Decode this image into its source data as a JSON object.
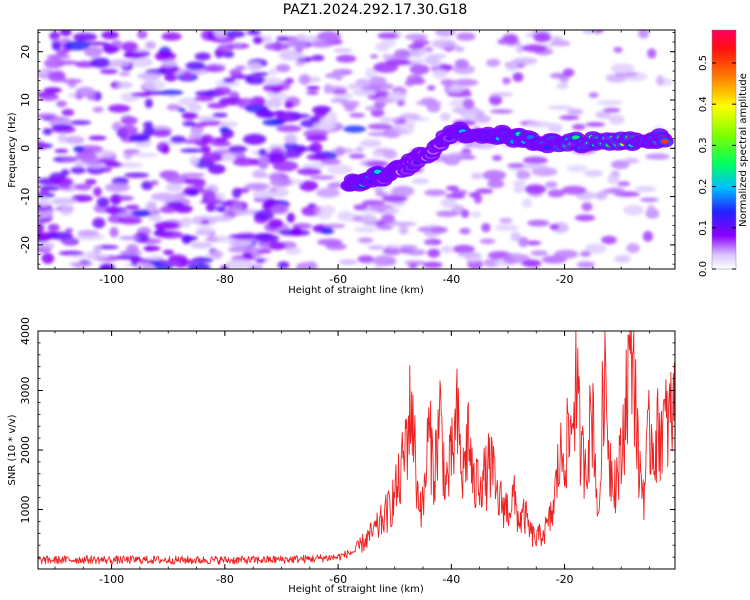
{
  "title": "PAZ1.2024.292.17.30.G18",
  "chart_data": [
    {
      "type": "heatmap",
      "xlabel": "Height of straight line (km)",
      "ylabel": "Frequency (Hz)",
      "xlim": [
        -113,
        -0.5
      ],
      "ylim": [
        -25,
        24.5
      ],
      "x_ticks": [
        -100,
        -80,
        -60,
        -40,
        -20
      ],
      "y_ticks": [
        -20,
        -10,
        0,
        10,
        20
      ],
      "colorbar": {
        "label": "Normalized spectral amplitude",
        "range": [
          0.0,
          0.58
        ],
        "ticks": [
          0.0,
          0.1,
          0.2,
          0.3,
          0.4,
          0.5
        ],
        "colormap": [
          "#ffffff",
          "#8b00ff",
          "#0000ff",
          "#00ffff",
          "#00ff00",
          "#ffff00",
          "#ff8000",
          "#ff0000",
          "#ff0060"
        ]
      },
      "signal_ridge": [
        {
          "x": -58,
          "y": -7.5,
          "amp": 0.22
        },
        {
          "x": -55,
          "y": -6.5,
          "amp": 0.25
        },
        {
          "x": -50,
          "y": -5.0,
          "amp": 0.14
        },
        {
          "x": -47,
          "y": -3.0,
          "amp": 0.13
        },
        {
          "x": -44,
          "y": -1.0,
          "amp": 0.15
        },
        {
          "x": -40,
          "y": 3.5,
          "amp": 0.16
        },
        {
          "x": -35,
          "y": 3.0,
          "amp": 0.22
        },
        {
          "x": -30,
          "y": 2.5,
          "amp": 0.26
        },
        {
          "x": -25,
          "y": 1.5,
          "amp": 0.22
        },
        {
          "x": -20,
          "y": 1.0,
          "amp": 0.3
        },
        {
          "x": -15,
          "y": 1.5,
          "amp": 0.34
        },
        {
          "x": -10,
          "y": 1.5,
          "amp": 0.44
        },
        {
          "x": -5,
          "y": 2.0,
          "amp": 0.38
        },
        {
          "x": -2,
          "y": 1.8,
          "amp": 0.5
        }
      ]
    },
    {
      "type": "line",
      "xlabel": "Height of straight line (km)",
      "ylabel": "SNR (10 * v/v)",
      "xlim": [
        -113,
        -0.5
      ],
      "ylim": [
        0,
        4000
      ],
      "x_ticks": [
        -100,
        -80,
        -60,
        -40,
        -20
      ],
      "y_ticks": [
        1000,
        2000,
        3000,
        4000
      ],
      "series": [
        {
          "color": "#ee2222",
          "x": [
            -113,
            -110,
            -105,
            -100,
            -95,
            -90,
            -85,
            -80,
            -75,
            -70,
            -65,
            -60,
            -57,
            -55,
            -53,
            -51,
            -49,
            -47,
            -46,
            -45,
            -44,
            -43,
            -42,
            -41,
            -40,
            -39,
            -38,
            -37,
            -36,
            -35,
            -34,
            -33,
            -32,
            -31,
            -30,
            -29,
            -28,
            -27,
            -26,
            -25,
            -24,
            -23,
            -22,
            -21,
            -20,
            -19,
            -18,
            -17,
            -16,
            -15,
            -14,
            -13,
            -12,
            -11,
            -10,
            -9,
            -8,
            -7,
            -6,
            -5,
            -4,
            -3,
            -2,
            -1,
            -0.5
          ],
          "y": [
            150,
            150,
            160,
            150,
            155,
            150,
            150,
            150,
            150,
            160,
            170,
            200,
            300,
            500,
            700,
            1000,
            1500,
            2800,
            1300,
            1000,
            2300,
            1600,
            2600,
            1400,
            1800,
            2500,
            1500,
            2300,
            1300,
            1600,
            1500,
            1800,
            1200,
            1100,
            1000,
            1200,
            800,
            900,
            600,
            500,
            600,
            700,
            1000,
            1800,
            2000,
            2200,
            3200,
            1800,
            2000,
            2700,
            700,
            3500,
            1800,
            1500,
            1800,
            3100,
            4000,
            1800,
            1300,
            2300,
            2100,
            2400,
            2400,
            2600,
            2700
          ]
        }
      ]
    }
  ]
}
